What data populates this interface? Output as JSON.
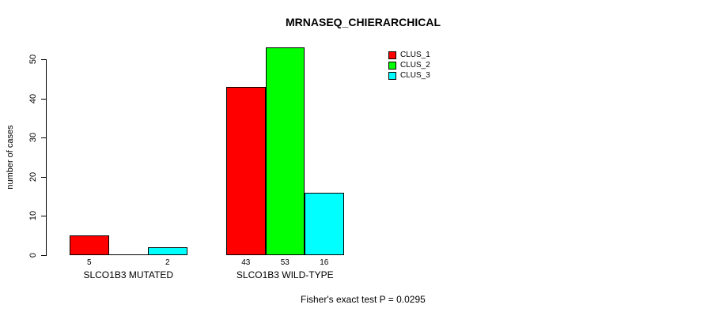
{
  "title": "MRNASEQ_CHIERARCHICAL",
  "annotation": "Fisher's exact test P = 0.0295",
  "legend": {
    "items": [
      {
        "label": "CLUS_1",
        "color": "#ff0000"
      },
      {
        "label": "CLUS_2",
        "color": "#00ff00"
      },
      {
        "label": "CLUS_3",
        "color": "#00ffff"
      }
    ]
  },
  "colors": {
    "clus_1": "#ff0000",
    "clus_2": "#00ff00",
    "clus_3": "#00ffff",
    "axis": "#000000",
    "background": "#ffffff"
  },
  "chart_data": {
    "type": "bar",
    "title": "MRNASEQ_CHIERARCHICAL",
    "xlabel": "",
    "ylabel": "number of cases",
    "categories": [
      "SLCO1B3 MUTATED",
      "SLCO1B3 WILD-TYPE"
    ],
    "series": [
      {
        "name": "CLUS_1",
        "color": "#ff0000",
        "values": [
          5,
          43
        ]
      },
      {
        "name": "CLUS_2",
        "color": "#00ff00",
        "values": [
          0,
          53
        ]
      },
      {
        "name": "CLUS_3",
        "color": "#00ffff",
        "values": [
          2,
          16
        ]
      }
    ],
    "bar_value_labels": [
      [
        "5",
        "",
        "2"
      ],
      [
        "43",
        "53",
        "16"
      ]
    ],
    "yticks": [
      0,
      10,
      20,
      30,
      40,
      50
    ],
    "ylim": [
      0,
      50
    ],
    "grid": false,
    "legend_position": "top-right",
    "annotation": "Fisher's exact test P = 0.0295"
  }
}
